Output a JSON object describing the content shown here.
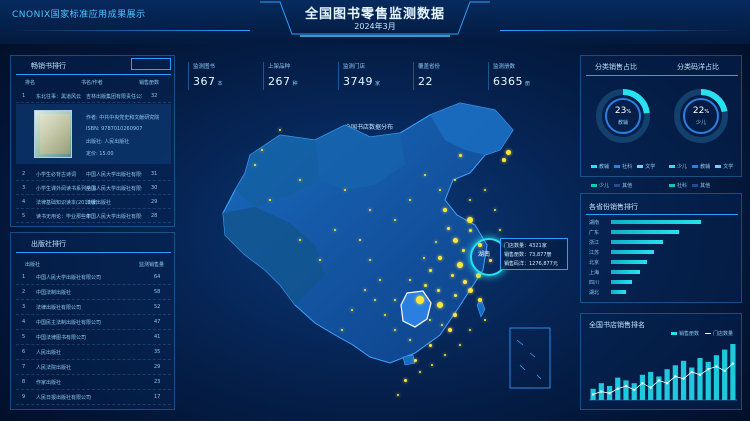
{
  "header": {
    "brand": "CNONIX国家标准应用成果展示",
    "title": "全国图书零售监测数据",
    "subtitle": "2024年3月"
  },
  "kpis": [
    {
      "label": "监测图书",
      "value": "367",
      "unit": "本"
    },
    {
      "label": "上架品种",
      "value": "267",
      "unit": "种"
    },
    {
      "label": "监测门店",
      "value": "3749",
      "unit": "家"
    },
    {
      "label": "覆盖省份",
      "value": "22",
      "unit": ""
    },
    {
      "label": "监测册数",
      "value": "6365",
      "unit": "册"
    }
  ],
  "left_top": {
    "title": "畅销书排行",
    "columns": [
      "排名",
      "书名/作者",
      "销售册数"
    ],
    "rows": [
      {
        "rank": "1",
        "name": "东北往事：黑道风云",
        "info": "吉林出版集团有限责任公司",
        "count": "32"
      },
      {
        "rank": "2",
        "name": "小学生必背古诗词",
        "info": "中国人民大学出版社有限公司",
        "count": "31"
      },
      {
        "rank": "3",
        "name": "小学生课外阅读书系列丛书",
        "info": "中国人民大学出版社有限公司",
        "count": "30"
      },
      {
        "rank": "4",
        "name": "法律基础知识读本(2019版)",
        "info": "法律出版社",
        "count": "29"
      },
      {
        "rank": "5",
        "name": "读书无用论：毕业那些年",
        "info": "中国人民大学出版社有限公司",
        "count": "28"
      }
    ],
    "detail": {
      "line1": "作者: 中共中央党史和文献研究院",
      "line2": "ISBN: 9787010260907",
      "line3": "出版社: 人民出版社",
      "line4": "定价: 15.00"
    }
  },
  "left_bottom": {
    "title": "出版社排行",
    "col_name": "出版社",
    "col_count": "监测销售量",
    "rows": [
      {
        "name": "中国人民大学出版社有限公司",
        "count": "64"
      },
      {
        "name": "中国法制出版社",
        "count": "58"
      },
      {
        "name": "法律出版社有限公司",
        "count": "52"
      },
      {
        "name": "中国民主法制出版社有限公司",
        "count": "47"
      },
      {
        "name": "中国法律图书有限公司",
        "count": "41"
      },
      {
        "name": "人民出版社",
        "count": "35"
      },
      {
        "name": "人民法院出版社",
        "count": "29"
      },
      {
        "name": "作家出版社",
        "count": "23"
      },
      {
        "name": "人民日报出版社有限公司",
        "count": "17"
      }
    ]
  },
  "map": {
    "title": "全国书店数据分布",
    "tooltip": {
      "name": "湖南",
      "line1": "门店数量：4321家",
      "line2": "销售册数：73,877册",
      "line3": "销售码洋：1276,877元"
    }
  },
  "right_top": {
    "title_a": "分类销售占比",
    "title_b": "分类码洋占比",
    "donut_a": {
      "pct": "23",
      "label": "教辅",
      "fraction": 0.23
    },
    "donut_b": {
      "pct": "22",
      "label": "少儿",
      "fraction": 0.22
    },
    "legend_a": [
      "教辅",
      "社科",
      "文学",
      "少儿",
      "其他"
    ],
    "legend_b": [
      "少儿",
      "教辅",
      "文学",
      "社科",
      "其他"
    ]
  },
  "right_mid": {
    "title": "各省份销售排行",
    "bars": [
      0.95,
      0.72,
      0.55,
      0.45,
      0.38,
      0.3,
      0.22,
      0.16
    ],
    "labels": [
      "湖南",
      "广东",
      "浙江",
      "江苏",
      "北京",
      "上海",
      "四川",
      "湖北"
    ]
  },
  "right_bottom": {
    "title": "全国书店销售排名",
    "legend_bar": "销售册数",
    "legend_line": "门店数量",
    "bars": [
      0.2,
      0.3,
      0.25,
      0.4,
      0.35,
      0.3,
      0.45,
      0.5,
      0.42,
      0.55,
      0.62,
      0.7,
      0.58,
      0.75,
      0.68,
      0.8,
      0.9,
      1.0
    ],
    "line": [
      0.1,
      0.15,
      0.12,
      0.2,
      0.25,
      0.18,
      0.3,
      0.22,
      0.35,
      0.3,
      0.42,
      0.38,
      0.5,
      0.45,
      0.55,
      0.6,
      0.52,
      0.65
    ]
  },
  "colors": {
    "accent": "#26e2f0",
    "dot": "#ffe83a",
    "highlight": "#2a7fe0"
  }
}
